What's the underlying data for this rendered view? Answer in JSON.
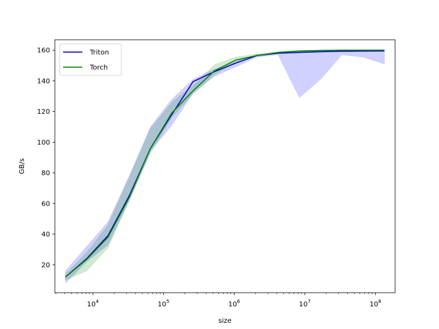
{
  "chart_data": {
    "type": "line",
    "title": "",
    "xlabel": "size",
    "ylabel": "GB/s",
    "xscale": "log",
    "xlim": [
      2900,
      190000000
    ],
    "ylim": [
      1.8,
      166.8
    ],
    "x_ticks": [
      {
        "value": 10000,
        "base": "10",
        "exp": "4"
      },
      {
        "value": 100000,
        "base": "10",
        "exp": "5"
      },
      {
        "value": 1000000,
        "base": "10",
        "exp": "6"
      },
      {
        "value": 10000000,
        "base": "10",
        "exp": "7"
      },
      {
        "value": 100000000,
        "base": "10",
        "exp": "8"
      }
    ],
    "y_ticks": [
      "20",
      "40",
      "60",
      "80",
      "100",
      "120",
      "140",
      "160"
    ],
    "grid": false,
    "legend_position": "top-left",
    "x": [
      4096,
      8192,
      16384,
      32768,
      65536,
      131072,
      262144,
      524288,
      1048576,
      2097152,
      4194304,
      8388608,
      16777216,
      33554432,
      67108864,
      134217728
    ],
    "series": [
      {
        "name": "Triton",
        "color": "#0000bf",
        "values": [
          12,
          24,
          39,
          65,
          96,
          118,
          139.5,
          146,
          151.5,
          156.5,
          158,
          158.5,
          159,
          159.3,
          159.4,
          159.5
        ],
        "band_low": [
          8,
          22,
          33,
          62,
          94,
          111,
          132,
          143,
          149,
          155.5,
          157,
          129,
          141,
          157,
          155.5,
          151
        ],
        "band_high": [
          16,
          32,
          48,
          78,
          110,
          128,
          141,
          147.5,
          152.5,
          157,
          158.5,
          159,
          159.5,
          159.7,
          159.8,
          160
        ],
        "band_color": "#0000ff"
      },
      {
        "name": "Torch",
        "color": "#008000",
        "values": [
          12,
          23.5,
          38,
          64,
          96,
          119,
          133.5,
          146.5,
          153.5,
          156.5,
          158.5,
          159.5,
          159.8,
          160,
          160,
          160
        ],
        "band_low": [
          10,
          16,
          31,
          62,
          93,
          116,
          131.5,
          144,
          152,
          156,
          158,
          159,
          159.5,
          159.7,
          159.8,
          159.8
        ],
        "band_high": [
          14,
          28,
          46,
          77,
          109,
          126,
          137,
          150.5,
          155.5,
          157.5,
          159,
          159.8,
          160.2,
          160.3,
          160.3,
          160.3
        ],
        "band_color": "#008000"
      }
    ]
  }
}
